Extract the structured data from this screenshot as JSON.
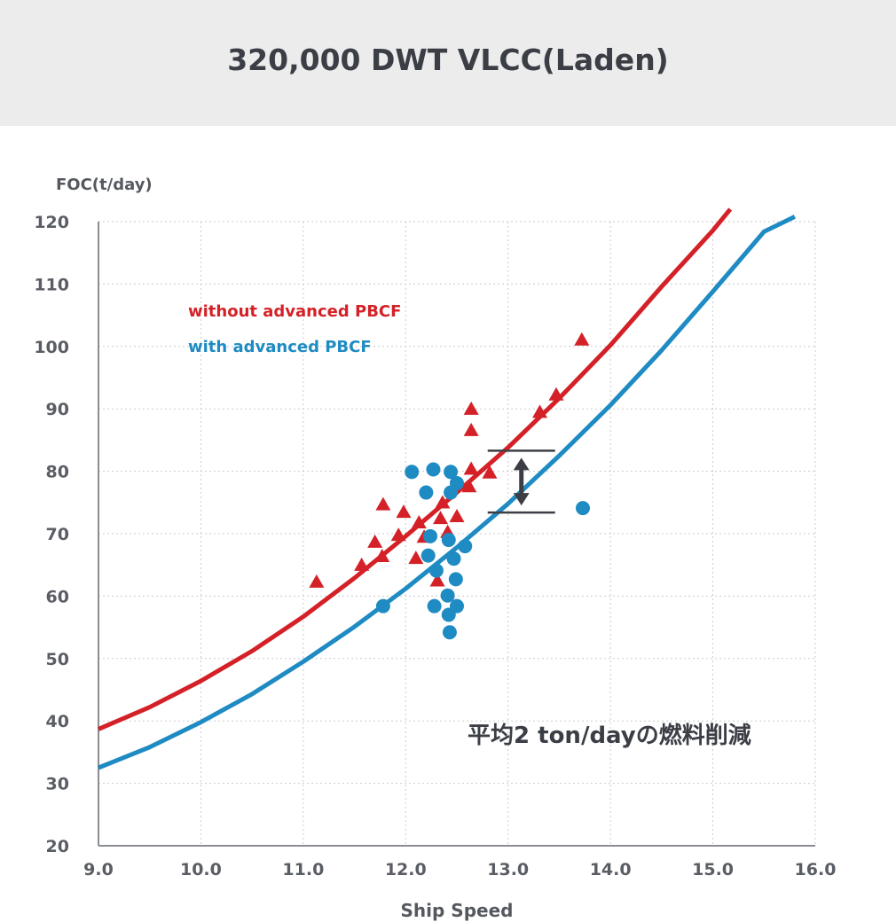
{
  "chart_data": {
    "type": "scatter",
    "title": "320,000 DWT VLCC(Laden)",
    "xlabel": "Ship Speed",
    "ylabel": "FOC(t/day)",
    "xlim": [
      9.0,
      16.0
    ],
    "ylim": [
      20,
      120
    ],
    "x_ticks": [
      "9.0",
      "10.0",
      "11.0",
      "12.0",
      "13.0",
      "14.0",
      "15.0",
      "16.0"
    ],
    "y_ticks": [
      "20",
      "30",
      "40",
      "50",
      "60",
      "70",
      "80",
      "90",
      "100",
      "110",
      "120"
    ],
    "grid": true,
    "legend_position": "top-left",
    "series": [
      {
        "name": "without advanced PBCF",
        "color": "#d42127",
        "marker": "triangle",
        "points": [
          [
            11.13,
            62.2
          ],
          [
            11.57,
            64.9
          ],
          [
            11.7,
            68.6
          ],
          [
            11.77,
            66.3
          ],
          [
            11.78,
            74.6
          ],
          [
            11.93,
            69.7
          ],
          [
            11.98,
            73.4
          ],
          [
            12.1,
            66.0
          ],
          [
            12.13,
            71.7
          ],
          [
            12.18,
            69.4
          ],
          [
            12.31,
            62.4
          ],
          [
            12.34,
            72.4
          ],
          [
            12.36,
            74.9
          ],
          [
            12.41,
            70.2
          ],
          [
            12.5,
            72.7
          ],
          [
            12.62,
            77.5
          ],
          [
            12.64,
            80.3
          ],
          [
            12.64,
            86.5
          ],
          [
            12.64,
            89.9
          ],
          [
            12.82,
            79.7
          ],
          [
            13.31,
            89.4
          ],
          [
            13.47,
            92.2
          ],
          [
            13.72,
            101.0
          ]
        ],
        "fit_curve": {
          "x": [
            9.0,
            9.5,
            10.0,
            10.5,
            11.0,
            11.5,
            12.0,
            12.5,
            13.0,
            13.5,
            14.0,
            14.5,
            15.0,
            15.17
          ],
          "y": [
            38.7,
            42.2,
            46.4,
            51.2,
            56.7,
            62.9,
            69.6,
            76.6,
            83.8,
            91.7,
            100.2,
            109.6,
            118.6,
            122.0
          ]
        }
      },
      {
        "name": "with advanced PBCF",
        "color": "#1f8bc3",
        "marker": "circle",
        "points": [
          [
            11.78,
            58.4
          ],
          [
            12.06,
            79.9
          ],
          [
            12.2,
            76.6
          ],
          [
            12.22,
            66.5
          ],
          [
            12.24,
            69.6
          ],
          [
            12.27,
            80.3
          ],
          [
            12.28,
            58.4
          ],
          [
            12.3,
            64.1
          ],
          [
            12.41,
            60.1
          ],
          [
            12.42,
            69.0
          ],
          [
            12.42,
            57.0
          ],
          [
            12.43,
            54.2
          ],
          [
            12.44,
            79.9
          ],
          [
            12.44,
            76.6
          ],
          [
            12.47,
            66.0
          ],
          [
            12.49,
            62.7
          ],
          [
            12.5,
            78.1
          ],
          [
            12.5,
            58.4
          ],
          [
            12.58,
            68.0
          ],
          [
            13.73,
            74.1
          ]
        ],
        "fit_curve": {
          "x": [
            9.0,
            9.5,
            10.0,
            10.5,
            11.0,
            11.5,
            12.0,
            12.5,
            13.0,
            13.5,
            14.0,
            14.5,
            15.0,
            15.5,
            15.8
          ],
          "y": [
            32.5,
            35.8,
            39.8,
            44.3,
            49.5,
            55.1,
            61.2,
            67.8,
            74.8,
            82.5,
            90.6,
            99.4,
            108.8,
            118.4,
            120.8
          ]
        }
      }
    ],
    "annotation": {
      "text": "平均2 ton/dayの燃料削減",
      "arrow_x": 13.13,
      "arrow_from": 83.3,
      "arrow_to": 73.4
    }
  }
}
